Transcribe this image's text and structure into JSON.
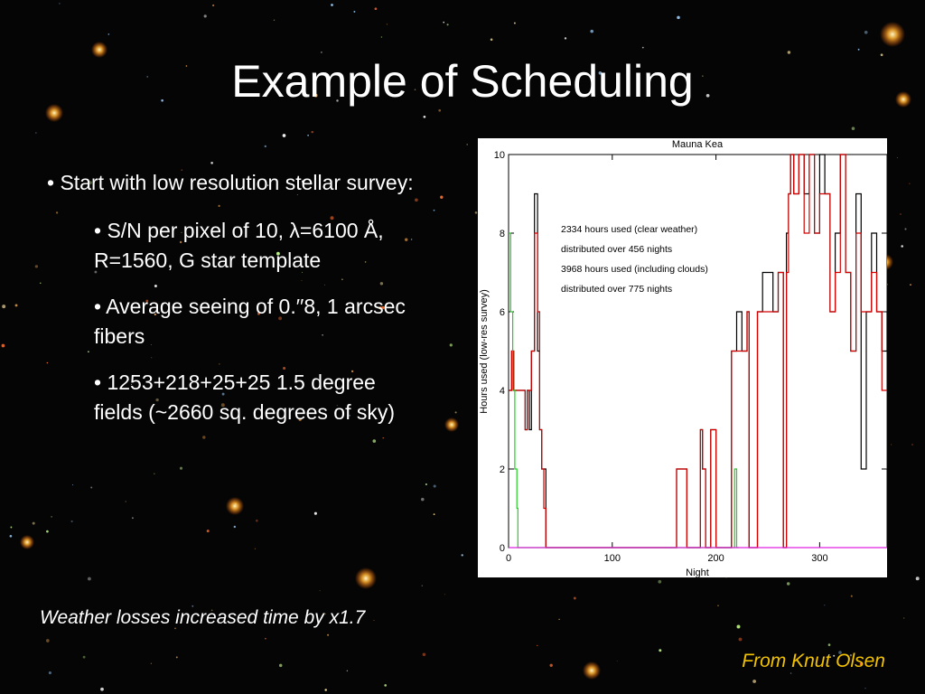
{
  "slide": {
    "title": "Example of Scheduling",
    "bullets": [
      {
        "level": 1,
        "text": "• Start with low resolution stellar survey:"
      },
      {
        "level": 2,
        "text": "• S/N per pixel of 10, λ=6100 Å, R=1560, G star template"
      },
      {
        "level": 2,
        "text": "• Average seeing of 0.′′8, 1 arcsec fibers"
      },
      {
        "level": 2,
        "text": "• 1253+218+25+25 1.5 degree fields (~2660 sq. degrees of sky)"
      }
    ],
    "weather_note": "Weather losses increased time by x1.7",
    "credit": "From Knut Olsen",
    "colors": {
      "background": "#050505",
      "text": "#ffffff",
      "credit": "#f2c200"
    }
  },
  "chart_data": {
    "type": "line",
    "title": "Mauna Kea",
    "xlabel": "Night",
    "ylabel": "Hours used (low-res survey)",
    "xlim": [
      0,
      365
    ],
    "ylim": [
      0,
      10
    ],
    "xticks": [
      0,
      100,
      200,
      300
    ],
    "yticks": [
      0,
      2,
      4,
      6,
      8,
      10
    ],
    "annotations": [
      "2334 hours used (clear weather)",
      "distributed over 456 nights",
      "3968 hours used (including clouds)",
      "distributed over 775 nights"
    ],
    "series": [
      {
        "color": "#000000",
        "x": [
          0,
          3,
          5,
          8,
          12,
          16,
          18,
          20,
          22,
          25,
          28,
          30,
          32,
          34,
          36,
          40,
          45,
          48,
          50,
          160,
          162,
          170,
          172,
          185,
          187,
          190,
          192,
          195,
          200,
          202,
          215,
          220,
          225,
          230,
          232,
          240,
          245,
          250,
          255,
          260,
          265,
          268,
          270,
          272,
          275,
          280,
          285,
          290,
          295,
          300,
          305,
          310,
          315,
          320,
          325,
          330,
          335,
          340,
          345,
          350,
          355,
          360,
          365
        ],
        "y": [
          4,
          5,
          4,
          4,
          4,
          3,
          4,
          3,
          5,
          9,
          5,
          3,
          2,
          2,
          0,
          0,
          0,
          0,
          0,
          0,
          2,
          2,
          0,
          3,
          2,
          0,
          0,
          3,
          0,
          0,
          5,
          6,
          5,
          6,
          0,
          6,
          7,
          7,
          6,
          7,
          0,
          8,
          9,
          10,
          9,
          10,
          9,
          10,
          8,
          10,
          9,
          6,
          8,
          10,
          7,
          5,
          9,
          2,
          6,
          8,
          6,
          5,
          6
        ]
      },
      {
        "color": "#d40000",
        "x": [
          0,
          3,
          5,
          8,
          12,
          16,
          18,
          20,
          22,
          25,
          28,
          30,
          32,
          34,
          36,
          40,
          45,
          48,
          50,
          160,
          162,
          170,
          172,
          185,
          187,
          190,
          192,
          195,
          200,
          202,
          215,
          220,
          225,
          230,
          232,
          240,
          245,
          250,
          255,
          260,
          265,
          268,
          270,
          272,
          275,
          280,
          285,
          290,
          295,
          300,
          305,
          310,
          315,
          320,
          325,
          330,
          335,
          340,
          345,
          350,
          355,
          360,
          365
        ],
        "y": [
          4,
          5,
          4,
          4,
          4,
          3,
          4,
          4,
          5,
          8,
          6,
          3,
          2,
          1,
          0,
          0,
          0,
          0,
          0,
          0,
          2,
          2,
          0,
          3,
          2,
          0,
          0,
          3,
          0,
          0,
          5,
          5,
          5,
          6,
          0,
          6,
          6,
          6,
          6,
          7,
          0,
          7,
          9,
          10,
          9,
          10,
          8,
          10,
          8,
          9,
          9,
          6,
          7,
          10,
          7,
          5,
          8,
          6,
          6,
          7,
          6,
          4,
          2
        ]
      },
      {
        "color": "#20d020",
        "x": [
          0,
          2,
          4,
          6,
          8,
          9,
          10,
          215,
          218,
          220,
          222
        ],
        "y": [
          8,
          6,
          4,
          2,
          1,
          0,
          0,
          0,
          2,
          0,
          0
        ]
      },
      {
        "color": "#e020e0",
        "x": [
          0,
          365
        ],
        "y": [
          0,
          0
        ]
      }
    ],
    "grid": false
  }
}
